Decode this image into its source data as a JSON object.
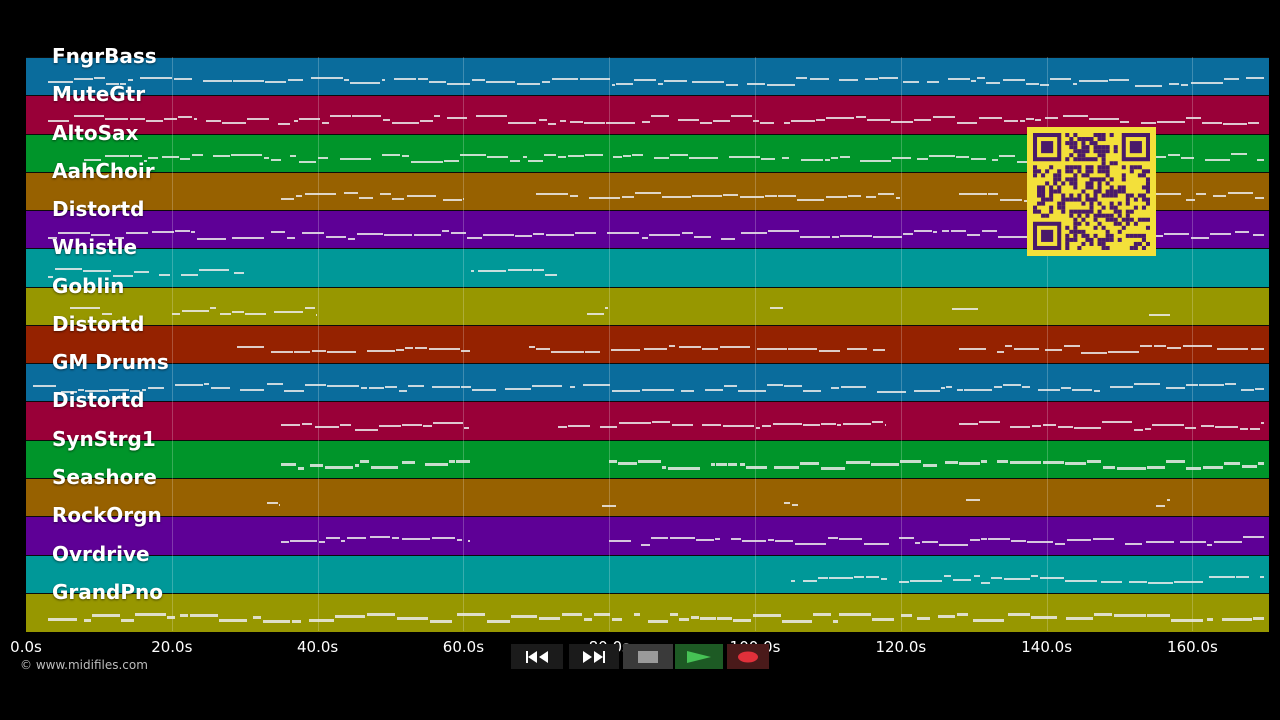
{
  "timeline": {
    "duration_seconds": 170.5,
    "ticks": [
      "0.0s",
      "20.0s",
      "40.0s",
      "60.0s",
      "80.0s",
      "100.0s",
      "120.0s",
      "140.0s",
      "160.0s"
    ],
    "tick_values": [
      0,
      20,
      40,
      60,
      80,
      100,
      120,
      140,
      160
    ]
  },
  "tracks": [
    {
      "name": "FngrBass",
      "color": "#0a6c9c"
    },
    {
      "name": "MuteGtr",
      "color": "#990038"
    },
    {
      "name": "AltoSax",
      "color": "#00952a"
    },
    {
      "name": "AahChoir",
      "color": "#976100"
    },
    {
      "name": "Distortd",
      "color": "#5e0096"
    },
    {
      "name": "Whistle",
      "color": "#009898"
    },
    {
      "name": "Goblin",
      "color": "#979700"
    },
    {
      "name": "Distortd",
      "color": "#952200"
    },
    {
      "name": "GM Drums",
      "color": "#0a6c9c"
    },
    {
      "name": "Distortd",
      "color": "#990038"
    },
    {
      "name": "SynStrg1",
      "color": "#00952a"
    },
    {
      "name": "Seashore",
      "color": "#976100"
    },
    {
      "name": "RockOrgn",
      "color": "#5e0096"
    },
    {
      "name": "Ovrdrive",
      "color": "#009898"
    },
    {
      "name": "GrandPno",
      "color": "#979700"
    }
  ],
  "copyright": "© www.midifiles.com",
  "transport": {
    "rewind_icon": "rewind-icon",
    "fastforward_icon": "fast-forward-icon",
    "stop_icon": "stop-icon",
    "play_icon": "play-icon",
    "record_icon": "record-icon"
  },
  "colors": {
    "background": "#000000",
    "qr_background": "#f3e03a",
    "qr_foreground": "#4a1a6a",
    "play_green": "#3fbf4f",
    "record_red": "#e0303a"
  }
}
